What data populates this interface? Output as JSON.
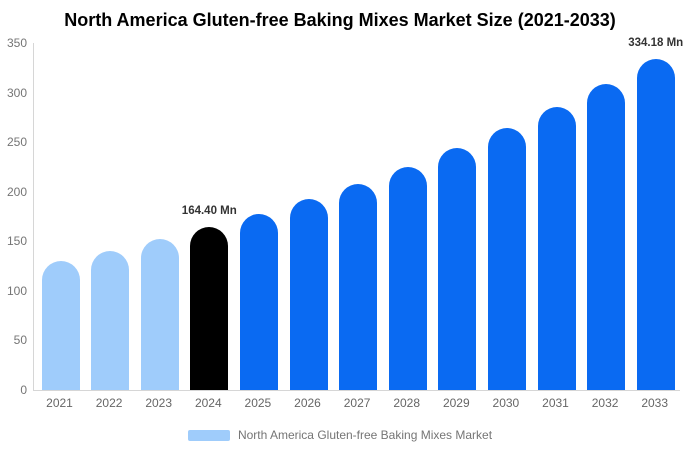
{
  "chart_data": {
    "type": "bar",
    "title": "North America Gluten-free Baking Mixes Market Size (2021-2033)",
    "categories": [
      "2021",
      "2022",
      "2023",
      "2024",
      "2025",
      "2026",
      "2027",
      "2028",
      "2029",
      "2030",
      "2031",
      "2032",
      "2033"
    ],
    "values": [
      129.8,
      140.5,
      152.0,
      164.4,
      177.9,
      192.5,
      208.3,
      225.4,
      243.9,
      263.9,
      285.5,
      308.9,
      334.18
    ],
    "unit": "Mn",
    "xlabel": "",
    "ylabel": "",
    "ylim": [
      0,
      350
    ],
    "yticks": [
      0,
      50,
      100,
      150,
      200,
      250,
      300,
      350
    ],
    "grid": false,
    "color_roles": [
      "historical",
      "historical",
      "historical",
      "base_year",
      "forecast",
      "forecast",
      "forecast",
      "forecast",
      "forecast",
      "forecast",
      "forecast",
      "forecast",
      "forecast"
    ],
    "colors": {
      "historical": "#9FCCFB",
      "base_year": "#000000",
      "forecast": "#0A6AF2"
    },
    "axis_line_color": "#d6d6d6",
    "annotations": [
      {
        "category": "2024",
        "label": "164.40 Mn"
      },
      {
        "category": "2033",
        "label": "334.18 Mn"
      }
    ],
    "legend": {
      "position": "bottom",
      "label": "North America Gluten-free Baking Mixes Market",
      "swatch_color": "#9FCCFB"
    }
  }
}
